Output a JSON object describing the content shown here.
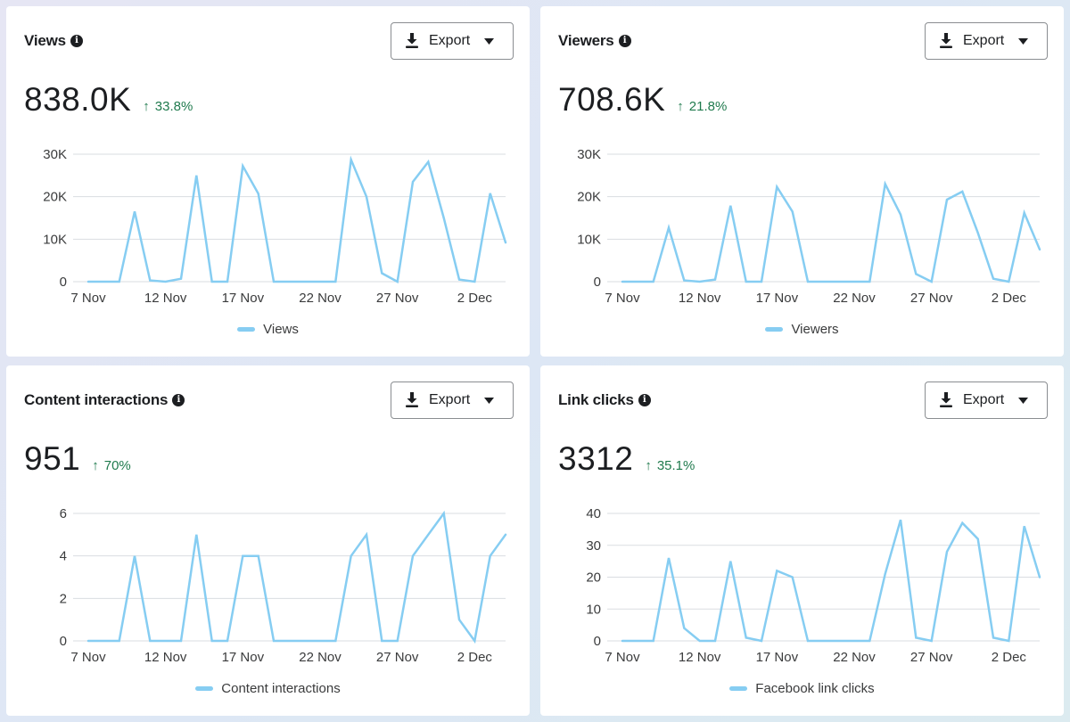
{
  "accent_color": "#86cdf2",
  "positive_color": "#1f7a4d",
  "cards": [
    {
      "title": "Views",
      "info_icon": "info-icon",
      "export_label": "Export",
      "value": "838.0K",
      "change": "33.8%",
      "change_direction": "up",
      "legend": "Views"
    },
    {
      "title": "Viewers",
      "info_icon": "info-icon",
      "export_label": "Export",
      "value": "708.6K",
      "change": "21.8%",
      "change_direction": "up",
      "legend": "Viewers"
    },
    {
      "title": "Content interactions",
      "info_icon": "info-icon",
      "export_label": "Export",
      "value": "951",
      "change": "70%",
      "change_direction": "up",
      "legend": "Content interactions"
    },
    {
      "title": "Link clicks",
      "info_icon": "info-icon",
      "export_label": "Export",
      "value": "3312",
      "change": "35.1%",
      "change_direction": "up",
      "legend": "Facebook link clicks"
    }
  ],
  "chart_data": [
    {
      "type": "line",
      "title": "Views",
      "xlabel": "",
      "ylabel": "",
      "x": [
        "7 Nov",
        "8 Nov",
        "9 Nov",
        "10 Nov",
        "11 Nov",
        "12 Nov",
        "13 Nov",
        "14 Nov",
        "15 Nov",
        "16 Nov",
        "17 Nov",
        "18 Nov",
        "19 Nov",
        "20 Nov",
        "21 Nov",
        "22 Nov",
        "23 Nov",
        "24 Nov",
        "25 Nov",
        "26 Nov",
        "27 Nov",
        "28 Nov",
        "29 Nov",
        "30 Nov",
        "1 Dec",
        "2 Dec",
        "3 Dec",
        "4 Dec"
      ],
      "x_tick_labels": [
        "7 Nov",
        "12 Nov",
        "17 Nov",
        "22 Nov",
        "27 Nov",
        "2 Dec"
      ],
      "y_ticks": [
        0,
        10000,
        20000,
        30000
      ],
      "y_tick_labels": [
        "0",
        "10K",
        "20K",
        "30K"
      ],
      "ylim": [
        0,
        30000
      ],
      "grid": true,
      "legend_position": "bottom-center",
      "series": [
        {
          "name": "Views",
          "values": [
            0,
            0,
            0,
            16500,
            300,
            0,
            700,
            25000,
            0,
            0,
            27200,
            20700,
            0,
            0,
            0,
            0,
            0,
            28700,
            20000,
            2000,
            0,
            23500,
            28200,
            15000,
            500,
            0,
            20800,
            9200
          ]
        }
      ]
    },
    {
      "type": "line",
      "title": "Viewers",
      "xlabel": "",
      "ylabel": "",
      "x": [
        "7 Nov",
        "8 Nov",
        "9 Nov",
        "10 Nov",
        "11 Nov",
        "12 Nov",
        "13 Nov",
        "14 Nov",
        "15 Nov",
        "16 Nov",
        "17 Nov",
        "18 Nov",
        "19 Nov",
        "20 Nov",
        "21 Nov",
        "22 Nov",
        "23 Nov",
        "24 Nov",
        "25 Nov",
        "26 Nov",
        "27 Nov",
        "28 Nov",
        "29 Nov",
        "30 Nov",
        "1 Dec",
        "2 Dec",
        "3 Dec",
        "4 Dec"
      ],
      "x_tick_labels": [
        "7 Nov",
        "12 Nov",
        "17 Nov",
        "22 Nov",
        "27 Nov",
        "2 Dec"
      ],
      "y_ticks": [
        0,
        10000,
        20000,
        30000
      ],
      "y_tick_labels": [
        "0",
        "10K",
        "20K",
        "30K"
      ],
      "ylim": [
        0,
        30000
      ],
      "grid": true,
      "legend_position": "bottom-center",
      "series": [
        {
          "name": "Viewers",
          "values": [
            0,
            0,
            0,
            12700,
            300,
            0,
            500,
            17900,
            0,
            0,
            22300,
            16500,
            0,
            0,
            0,
            0,
            0,
            23000,
            15800,
            1800,
            0,
            19300,
            21200,
            11500,
            700,
            0,
            16200,
            7600
          ]
        }
      ]
    },
    {
      "type": "line",
      "title": "Content interactions",
      "xlabel": "",
      "ylabel": "",
      "x": [
        "7 Nov",
        "8 Nov",
        "9 Nov",
        "10 Nov",
        "11 Nov",
        "12 Nov",
        "13 Nov",
        "14 Nov",
        "15 Nov",
        "16 Nov",
        "17 Nov",
        "18 Nov",
        "19 Nov",
        "20 Nov",
        "21 Nov",
        "22 Nov",
        "23 Nov",
        "24 Nov",
        "25 Nov",
        "26 Nov",
        "27 Nov",
        "28 Nov",
        "29 Nov",
        "30 Nov",
        "1 Dec",
        "2 Dec",
        "3 Dec",
        "4 Dec"
      ],
      "x_tick_labels": [
        "7 Nov",
        "12 Nov",
        "17 Nov",
        "22 Nov",
        "27 Nov",
        "2 Dec"
      ],
      "y_ticks": [
        0,
        2,
        4,
        6
      ],
      "y_tick_labels": [
        "0",
        "2",
        "4",
        "6"
      ],
      "ylim": [
        0,
        6
      ],
      "grid": true,
      "legend_position": "bottom-center",
      "series": [
        {
          "name": "Content interactions",
          "values": [
            0,
            0,
            0,
            4,
            0,
            0,
            0,
            5,
            0,
            0,
            4,
            4,
            0,
            0,
            0,
            0,
            0,
            4,
            5,
            0,
            0,
            4,
            5,
            6,
            1,
            0,
            4,
            5
          ]
        }
      ]
    },
    {
      "type": "line",
      "title": "Link clicks",
      "xlabel": "",
      "ylabel": "",
      "x": [
        "7 Nov",
        "8 Nov",
        "9 Nov",
        "10 Nov",
        "11 Nov",
        "12 Nov",
        "13 Nov",
        "14 Nov",
        "15 Nov",
        "16 Nov",
        "17 Nov",
        "18 Nov",
        "19 Nov",
        "20 Nov",
        "21 Nov",
        "22 Nov",
        "23 Nov",
        "24 Nov",
        "25 Nov",
        "26 Nov",
        "27 Nov",
        "28 Nov",
        "29 Nov",
        "30 Nov",
        "1 Dec",
        "2 Dec",
        "3 Dec",
        "4 Dec"
      ],
      "x_tick_labels": [
        "7 Nov",
        "12 Nov",
        "17 Nov",
        "22 Nov",
        "27 Nov",
        "2 Dec"
      ],
      "y_ticks": [
        0,
        10,
        20,
        30,
        40
      ],
      "y_tick_labels": [
        "0",
        "10",
        "20",
        "30",
        "40"
      ],
      "ylim": [
        0,
        40
      ],
      "grid": true,
      "legend_position": "bottom-center",
      "series": [
        {
          "name": "Facebook link clicks",
          "values": [
            0,
            0,
            0,
            26,
            4,
            0,
            0,
            25,
            1,
            0,
            22,
            20,
            0,
            0,
            0,
            0,
            0,
            21,
            38,
            1,
            0,
            28,
            37,
            32,
            1,
            0,
            36,
            20
          ]
        }
      ]
    }
  ]
}
